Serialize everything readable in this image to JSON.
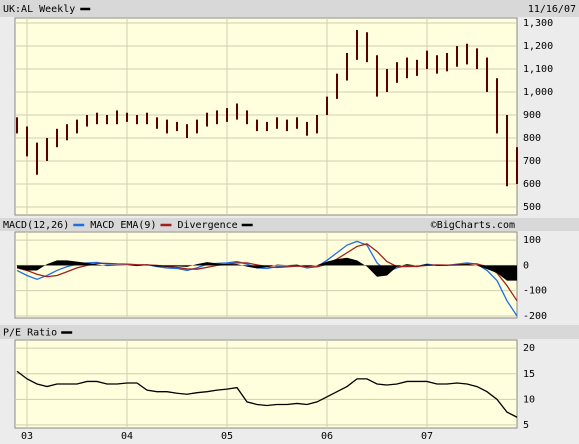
{
  "chart_data": [
    {
      "type": "range",
      "title": "UK:AL Weekly",
      "subtitle": "11/16/07",
      "color": "#5a0000",
      "x": [
        2002.9,
        2003.0,
        2003.1,
        2003.2,
        2003.3,
        2003.4,
        2003.5,
        2003.6,
        2003.7,
        2003.8,
        2003.9,
        2004.0,
        2004.1,
        2004.2,
        2004.3,
        2004.4,
        2004.5,
        2004.6,
        2004.7,
        2004.8,
        2004.9,
        2005.0,
        2005.1,
        2005.2,
        2005.3,
        2005.4,
        2005.5,
        2005.6,
        2005.7,
        2005.8,
        2005.9,
        2006.0,
        2006.1,
        2006.2,
        2006.3,
        2006.4,
        2006.5,
        2006.6,
        2006.7,
        2006.8,
        2006.9,
        2007.0,
        2007.1,
        2007.2,
        2007.3,
        2007.4,
        2007.5,
        2007.6,
        2007.7,
        2007.8,
        2007.9
      ],
      "high": [
        890,
        850,
        780,
        800,
        840,
        860,
        880,
        900,
        910,
        900,
        920,
        910,
        900,
        910,
        890,
        880,
        870,
        860,
        880,
        910,
        920,
        930,
        950,
        920,
        880,
        870,
        890,
        880,
        890,
        870,
        900,
        980,
        1080,
        1170,
        1270,
        1260,
        1160,
        1100,
        1130,
        1150,
        1140,
        1180,
        1160,
        1170,
        1200,
        1210,
        1190,
        1150,
        1060,
        900,
        760
      ],
      "low": [
        820,
        720,
        640,
        700,
        760,
        790,
        820,
        850,
        860,
        860,
        860,
        870,
        860,
        860,
        840,
        820,
        830,
        800,
        820,
        850,
        860,
        870,
        880,
        860,
        830,
        830,
        840,
        830,
        840,
        810,
        820,
        900,
        970,
        1050,
        1140,
        1130,
        980,
        1000,
        1040,
        1060,
        1070,
        1100,
        1080,
        1090,
        1110,
        1120,
        1100,
        1000,
        820,
        590,
        600
      ],
      "xlim": [
        2002.88,
        2007.9
      ],
      "ylim": [
        465,
        1322
      ],
      "yticks": [
        {
          "value": 1300,
          "label": "1,300"
        },
        {
          "value": 1200,
          "label": "1,200"
        },
        {
          "value": 1100,
          "label": "1,100"
        },
        {
          "value": 1000,
          "label": "1,000"
        },
        900,
        800,
        700,
        600,
        500
      ]
    },
    {
      "type": "line",
      "annotation": "©BigCharts.com",
      "xlim": [
        2002.88,
        2007.9
      ],
      "ylim": [
        -208,
        132
      ],
      "yticks": [
        100,
        0,
        -100,
        -200
      ],
      "series": [
        {
          "name": "MACD(12,26)",
          "color": "#1f6fe0",
          "values": [
            -20,
            -40,
            -55,
            -40,
            -20,
            -5,
            5,
            10,
            12,
            5,
            5,
            5,
            0,
            3,
            -5,
            -10,
            -12,
            -20,
            -10,
            5,
            8,
            10,
            15,
            5,
            -10,
            -12,
            -5,
            -5,
            0,
            -10,
            -5,
            20,
            50,
            80,
            95,
            80,
            10,
            -25,
            -10,
            0,
            -5,
            5,
            0,
            0,
            5,
            10,
            5,
            -20,
            -60,
            -140,
            -200
          ]
        },
        {
          "name": "MACD EMA(9)",
          "color": "#a02020",
          "values": [
            -10,
            -20,
            -35,
            -45,
            -40,
            -25,
            -10,
            0,
            8,
            8,
            6,
            5,
            3,
            2,
            0,
            -5,
            -8,
            -14,
            -15,
            -8,
            0,
            5,
            10,
            10,
            2,
            -5,
            -8,
            -6,
            -3,
            -5,
            -6,
            5,
            25,
            50,
            75,
            85,
            55,
            15,
            -5,
            -5,
            -4,
            0,
            2,
            1,
            2,
            5,
            6,
            -5,
            -30,
            -80,
            -140
          ]
        },
        {
          "name": "Divergence",
          "color": "#000000",
          "style": "area",
          "values": [
            -10,
            -20,
            -20,
            5,
            20,
            20,
            15,
            10,
            4,
            -3,
            -1,
            0,
            -3,
            1,
            -5,
            -5,
            -4,
            -6,
            5,
            13,
            8,
            5,
            5,
            -5,
            -12,
            -7,
            3,
            1,
            3,
            -5,
            1,
            15,
            25,
            30,
            20,
            -5,
            -45,
            -40,
            -5,
            5,
            -1,
            5,
            -2,
            -1,
            3,
            5,
            -1,
            -15,
            -30,
            -60,
            -60
          ]
        }
      ]
    },
    {
      "type": "line",
      "xlim": [
        2002.88,
        2007.9
      ],
      "ylim": [
        4.4,
        21.6
      ],
      "yticks": [
        20,
        15,
        10,
        5
      ],
      "xticks": [
        {
          "value": 2003,
          "label": "03"
        },
        {
          "value": 2004,
          "label": "04"
        },
        {
          "value": 2005,
          "label": "05"
        },
        {
          "value": 2006,
          "label": "06"
        },
        {
          "value": 2007,
          "label": "07"
        }
      ],
      "series": [
        {
          "name": "P/E Ratio",
          "color": "#000000",
          "values": [
            15.5,
            14,
            13,
            12.5,
            13,
            13,
            13,
            13.5,
            13.5,
            13,
            13,
            13.2,
            13.2,
            11.8,
            11.5,
            11.5,
            11.2,
            11,
            11.3,
            11.5,
            11.8,
            12,
            12.3,
            9.5,
            9,
            8.8,
            9,
            9,
            9.2,
            9,
            9.5,
            10.5,
            11.5,
            12.5,
            14,
            14,
            13,
            12.8,
            13,
            13.5,
            13.5,
            13.5,
            13,
            13,
            13.2,
            13,
            12.5,
            11.5,
            10,
            7.5,
            6.5
          ]
        }
      ]
    }
  ]
}
